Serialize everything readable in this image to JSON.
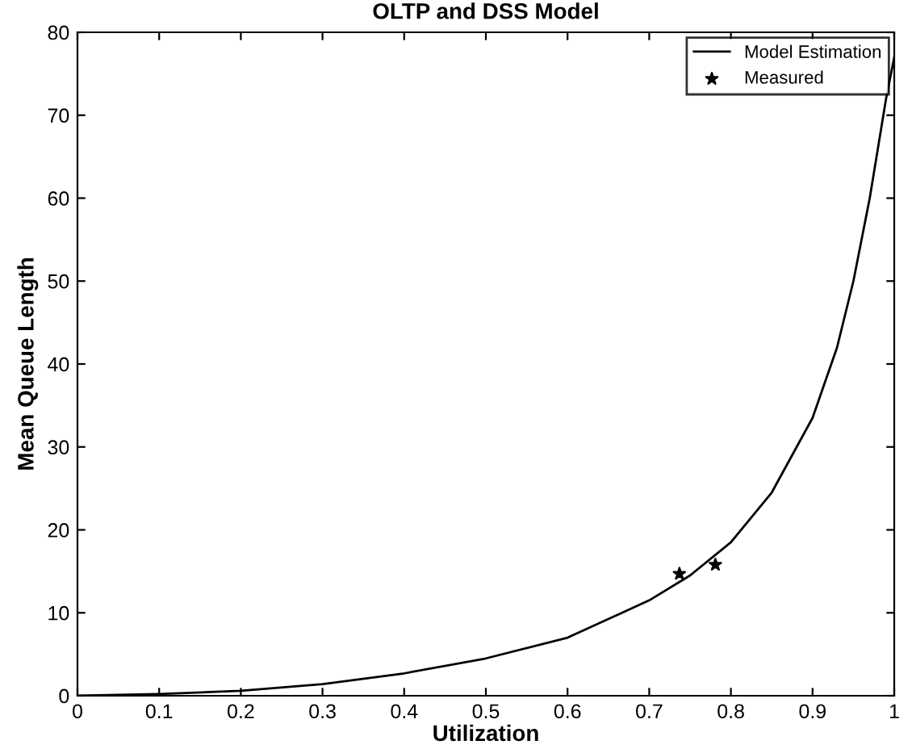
{
  "chart_data": {
    "type": "line",
    "title": "OLTP and DSS Model",
    "xlabel": "Utilization",
    "ylabel": "Mean Queue Length",
    "xlim": [
      0,
      1
    ],
    "ylim": [
      0,
      80
    ],
    "xticks": [
      0,
      0.1,
      0.2,
      0.3,
      0.4,
      0.5,
      0.6,
      0.7,
      0.8,
      0.9,
      1
    ],
    "yticks": [
      0,
      10,
      20,
      30,
      40,
      50,
      60,
      70,
      80
    ],
    "grid": false,
    "legend": "top right",
    "series": [
      {
        "name": "Model Estimation",
        "color": "#000000",
        "marker": "none",
        "line_style": "solid",
        "x": [
          0,
          0.1,
          0.2,
          0.3,
          0.4,
          0.5,
          0.6,
          0.7,
          0.75,
          0.8,
          0.85,
          0.9,
          0.93,
          0.95,
          0.97,
          0.99,
          1.0
        ],
        "values": [
          0,
          0.2,
          0.6,
          1.4,
          2.7,
          4.5,
          7.0,
          11.5,
          14.5,
          18.5,
          24.5,
          33.5,
          42,
          50,
          60,
          72,
          77
        ]
      },
      {
        "name": "Measured",
        "type": "scatter",
        "color": "#000000",
        "marker": "star",
        "x": [
          0.737,
          0.781
        ],
        "values": [
          14.7,
          15.8
        ]
      }
    ]
  }
}
